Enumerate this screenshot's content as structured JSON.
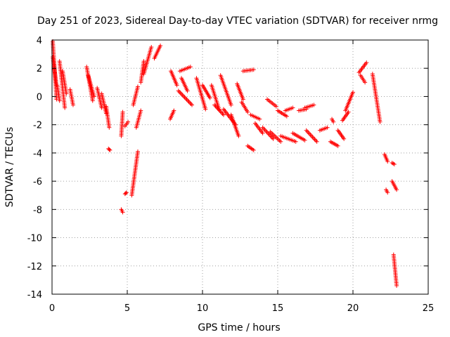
{
  "chart_data": {
    "type": "scatter",
    "title": "Day 251 of 2023, Sidereal Day-to-day VTEC variation (SDTVAR) for receiver nrmg",
    "xlabel": "GPS time / hours",
    "ylabel": "SDTVAR / TECUs",
    "xlim": [
      0,
      25
    ],
    "ylim": [
      -14,
      4
    ],
    "xticks": [
      0,
      5,
      10,
      15,
      20,
      25
    ],
    "yticks": [
      -14,
      -12,
      -10,
      -8,
      -6,
      -4,
      -2,
      0,
      2,
      4
    ],
    "grid": true,
    "marker": "+",
    "marker_color": "#ff0000",
    "segments": [
      [
        0.05,
        0.3,
        3.9,
        -0.2
      ],
      [
        0.05,
        0.3,
        2.8,
        0.8
      ],
      [
        0.35,
        0.5,
        0.8,
        -0.3
      ],
      [
        0.5,
        0.85,
        2.5,
        -0.8
      ],
      [
        0.7,
        0.95,
        1.8,
        0.2
      ],
      [
        1.2,
        1.4,
        0.5,
        -0.6
      ],
      [
        2.3,
        2.7,
        2.1,
        -0.3
      ],
      [
        2.4,
        2.8,
        1.5,
        0.0
      ],
      [
        3.0,
        3.3,
        0.6,
        -0.8
      ],
      [
        3.3,
        3.6,
        0.2,
        -1.2
      ],
      [
        3.6,
        3.8,
        -0.7,
        -2.2
      ],
      [
        3.75,
        3.85,
        -3.7,
        -3.8
      ],
      [
        4.6,
        4.7,
        -8.0,
        -8.2
      ],
      [
        4.6,
        4.7,
        -2.8,
        -1.1
      ],
      [
        4.85,
        4.95,
        -6.9,
        -6.8
      ],
      [
        4.85,
        5.05,
        -2.1,
        -1.8
      ],
      [
        5.3,
        5.7,
        -7.0,
        -3.9
      ],
      [
        5.4,
        5.7,
        -0.6,
        0.7
      ],
      [
        5.6,
        5.9,
        -2.2,
        -1.0
      ],
      [
        5.9,
        6.1,
        1.0,
        2.5
      ],
      [
        6.1,
        6.6,
        1.6,
        3.5
      ],
      [
        6.8,
        7.2,
        2.7,
        3.6
      ],
      [
        7.9,
        8.3,
        1.8,
        0.8
      ],
      [
        7.85,
        8.1,
        -1.6,
        -1.0
      ],
      [
        8.5,
        9.2,
        1.8,
        2.1
      ],
      [
        8.6,
        9.0,
        1.3,
        0.4
      ],
      [
        8.4,
        9.3,
        0.4,
        -0.6
      ],
      [
        9.6,
        10.2,
        1.3,
        -0.9
      ],
      [
        10.0,
        10.5,
        0.8,
        -0.1
      ],
      [
        10.6,
        11.1,
        0.8,
        -0.9
      ],
      [
        10.8,
        11.4,
        -0.6,
        -1.3
      ],
      [
        11.2,
        11.9,
        1.5,
        -0.6
      ],
      [
        11.4,
        12.2,
        -0.9,
        -2.0
      ],
      [
        11.9,
        12.4,
        -1.3,
        -2.8
      ],
      [
        12.3,
        12.7,
        0.9,
        -0.2
      ],
      [
        12.6,
        13.0,
        -0.4,
        -1.1
      ],
      [
        12.7,
        13.4,
        1.8,
        1.9
      ],
      [
        13.0,
        13.4,
        -3.5,
        -3.8
      ],
      [
        13.2,
        13.8,
        -1.3,
        -1.6
      ],
      [
        13.5,
        14.0,
        -1.9,
        -2.6
      ],
      [
        14.0,
        14.7,
        -2.2,
        -3.0
      ],
      [
        14.3,
        14.9,
        -0.2,
        -0.7
      ],
      [
        14.5,
        15.2,
        -2.5,
        -3.2
      ],
      [
        15.0,
        15.6,
        -1.0,
        -1.4
      ],
      [
        15.2,
        16.2,
        -2.8,
        -3.2
      ],
      [
        15.5,
        16.0,
        -1.0,
        -0.8
      ],
      [
        16.0,
        16.8,
        -2.6,
        -3.1
      ],
      [
        16.4,
        16.9,
        -1.0,
        -0.9
      ],
      [
        16.8,
        17.4,
        -0.8,
        -0.6
      ],
      [
        16.9,
        17.6,
        -2.4,
        -3.2
      ],
      [
        17.8,
        18.3,
        -2.4,
        -2.2
      ],
      [
        18.5,
        19.0,
        -3.2,
        -3.5
      ],
      [
        18.6,
        18.7,
        -1.6,
        -1.8
      ],
      [
        19.0,
        19.4,
        -2.4,
        -3.0
      ],
      [
        19.3,
        19.7,
        -1.7,
        -1.1
      ],
      [
        19.5,
        20.0,
        -1.0,
        0.3
      ],
      [
        20.4,
        20.9,
        1.7,
        2.4
      ],
      [
        20.5,
        20.8,
        1.5,
        1.0
      ],
      [
        21.3,
        21.8,
        1.6,
        -1.8
      ],
      [
        22.1,
        22.3,
        -4.1,
        -4.6
      ],
      [
        22.2,
        22.3,
        -6.6,
        -6.8
      ],
      [
        22.6,
        22.75,
        -4.7,
        -4.8
      ],
      [
        22.6,
        22.9,
        -6.0,
        -6.6
      ],
      [
        22.7,
        22.9,
        -11.2,
        -13.4
      ]
    ]
  }
}
